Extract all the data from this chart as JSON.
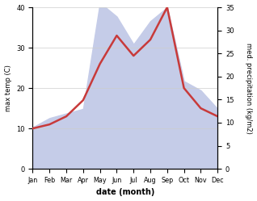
{
  "months": [
    "Jan",
    "Feb",
    "Mar",
    "Apr",
    "May",
    "Jun",
    "Jul",
    "Aug",
    "Sep",
    "Oct",
    "Nov",
    "Dec"
  ],
  "temp": [
    10,
    11,
    13,
    17,
    26,
    33,
    28,
    32,
    40,
    20,
    15,
    13
  ],
  "precip": [
    9,
    11,
    12,
    13,
    36,
    33,
    27,
    32,
    35,
    19,
    17,
    13
  ],
  "temp_color": "#c83a3a",
  "precip_fill": "#c5cce8",
  "precip_edge": "#c5cce8",
  "temp_ylim": [
    0,
    40
  ],
  "precip_ylim": [
    0,
    35
  ],
  "xlabel": "date (month)",
  "ylabel_left": "max temp (C)",
  "ylabel_right": "med. precipitation (kg/m2)",
  "bg_color": "#ffffff",
  "left_yticks": [
    0,
    10,
    20,
    30,
    40
  ],
  "right_yticks": [
    0,
    5,
    10,
    15,
    20,
    25,
    30,
    35
  ]
}
